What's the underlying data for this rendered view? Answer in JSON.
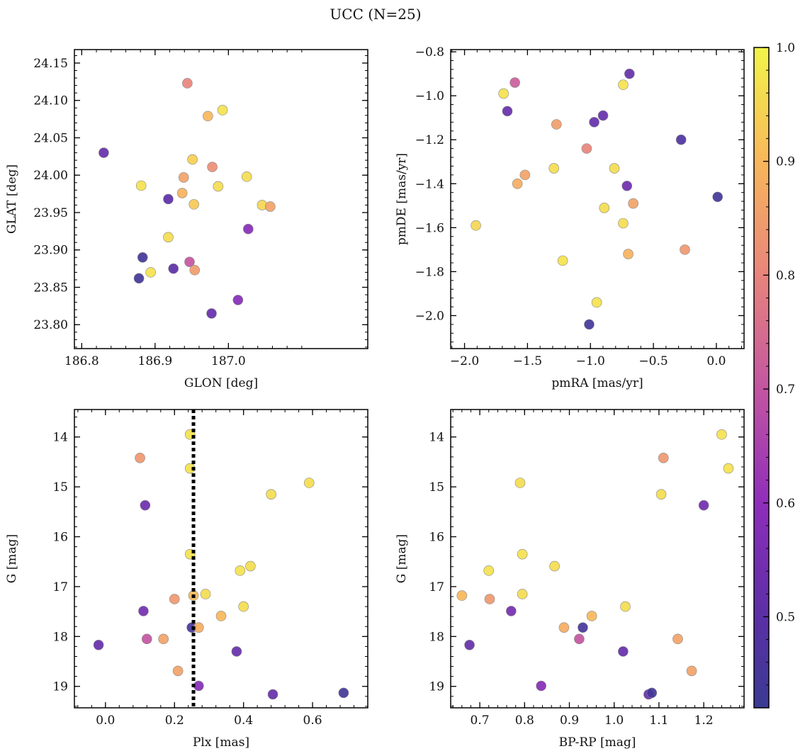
{
  "figure": {
    "title": "UCC (N=25)"
  },
  "colorbar": {
    "colormap": "plasma",
    "vmin": 0.42,
    "vmax": 1.0,
    "ticks": [
      0.5,
      0.6,
      0.7,
      0.8,
      0.9,
      1.0
    ],
    "tick_labels": [
      "0.5",
      "0.6",
      "0.7",
      "0.8",
      "0.9",
      "1.0"
    ]
  },
  "chart_data": [
    {
      "type": "scatter",
      "title": "",
      "xlabel": "GLON [deg]",
      "ylabel": "GLAT [deg]",
      "xlim": [
        186.79,
        187.19
      ],
      "ylim": [
        23.768,
        24.168
      ],
      "xticks": [
        186.8,
        186.9,
        187.0
      ],
      "xtick_labels": [
        "186.8",
        "186.9",
        "187.0"
      ],
      "yticks": [
        23.8,
        23.85,
        23.9,
        23.95,
        24.0,
        24.05,
        24.1,
        24.15
      ],
      "ytick_labels": [
        "23.80",
        "23.85",
        "23.90",
        "23.95",
        "24.00",
        "24.05",
        "24.10",
        "24.15"
      ],
      "y_inverted": false,
      "points": [
        {
          "x": 186.83,
          "y": 24.03,
          "c": 0.52
        },
        {
          "x": 186.944,
          "y": 24.123,
          "c": 0.8
        },
        {
          "x": 186.992,
          "y": 24.087,
          "c": 0.97
        },
        {
          "x": 186.972,
          "y": 24.079,
          "c": 0.9
        },
        {
          "x": 186.881,
          "y": 23.986,
          "c": 0.97
        },
        {
          "x": 186.951,
          "y": 24.021,
          "c": 0.94
        },
        {
          "x": 186.978,
          "y": 24.011,
          "c": 0.82
        },
        {
          "x": 186.939,
          "y": 23.997,
          "c": 0.86
        },
        {
          "x": 187.025,
          "y": 23.998,
          "c": 0.96
        },
        {
          "x": 186.986,
          "y": 23.985,
          "c": 0.96
        },
        {
          "x": 186.918,
          "y": 23.968,
          "c": 0.5
        },
        {
          "x": 186.937,
          "y": 23.976,
          "c": 0.89
        },
        {
          "x": 186.953,
          "y": 23.961,
          "c": 0.93
        },
        {
          "x": 187.046,
          "y": 23.96,
          "c": 0.95
        },
        {
          "x": 187.057,
          "y": 23.958,
          "c": 0.86
        },
        {
          "x": 187.027,
          "y": 23.928,
          "c": 0.58
        },
        {
          "x": 186.918,
          "y": 23.917,
          "c": 0.96
        },
        {
          "x": 186.883,
          "y": 23.89,
          "c": 0.44
        },
        {
          "x": 186.947,
          "y": 23.884,
          "c": 0.7
        },
        {
          "x": 186.925,
          "y": 23.875,
          "c": 0.5
        },
        {
          "x": 186.954,
          "y": 23.873,
          "c": 0.85
        },
        {
          "x": 186.894,
          "y": 23.87,
          "c": 0.97
        },
        {
          "x": 186.878,
          "y": 23.862,
          "c": 0.44
        },
        {
          "x": 187.013,
          "y": 23.833,
          "c": 0.58
        },
        {
          "x": 186.977,
          "y": 23.815,
          "c": 0.52
        }
      ]
    },
    {
      "type": "scatter",
      "title": "",
      "xlabel": "pmRA [mas/yr]",
      "ylabel": "pmDE [mas/yr]",
      "xlim": [
        -2.11,
        0.22
      ],
      "ylim": [
        -2.15,
        -0.79
      ],
      "xticks": [
        -2.0,
        -1.5,
        -1.0,
        -0.5,
        0.0
      ],
      "xtick_labels": [
        "−2.0",
        "−1.5",
        "−1.0",
        "−0.5",
        "0.0"
      ],
      "yticks": [
        -2.0,
        -1.8,
        -1.6,
        -1.4,
        -1.2,
        -1.0,
        -0.8
      ],
      "ytick_labels": [
        "−2.0",
        "−1.8",
        "−1.6",
        "−1.4",
        "−1.2",
        "−1.0",
        "−0.8"
      ],
      "y_inverted": false,
      "points": [
        {
          "x": -0.69,
          "y": -0.9,
          "c": 0.52
        },
        {
          "x": -1.6,
          "y": -0.94,
          "c": 0.72
        },
        {
          "x": -0.74,
          "y": -0.95,
          "c": 0.97
        },
        {
          "x": -1.69,
          "y": -0.99,
          "c": 0.97
        },
        {
          "x": -1.66,
          "y": -1.07,
          "c": 0.52
        },
        {
          "x": -0.9,
          "y": -1.09,
          "c": 0.52
        },
        {
          "x": -0.97,
          "y": -1.12,
          "c": 0.52
        },
        {
          "x": -1.27,
          "y": -1.13,
          "c": 0.85
        },
        {
          "x": -0.28,
          "y": -1.2,
          "c": 0.47
        },
        {
          "x": -1.03,
          "y": -1.24,
          "c": 0.8
        },
        {
          "x": -1.29,
          "y": -1.33,
          "c": 0.96
        },
        {
          "x": -0.81,
          "y": -1.33,
          "c": 0.96
        },
        {
          "x": -1.52,
          "y": -1.36,
          "c": 0.86
        },
        {
          "x": -1.58,
          "y": -1.4,
          "c": 0.88
        },
        {
          "x": -0.71,
          "y": -1.41,
          "c": 0.54
        },
        {
          "x": 0.01,
          "y": -1.46,
          "c": 0.44
        },
        {
          "x": -0.66,
          "y": -1.49,
          "c": 0.86
        },
        {
          "x": -0.89,
          "y": -1.51,
          "c": 0.96
        },
        {
          "x": -1.91,
          "y": -1.59,
          "c": 0.95
        },
        {
          "x": -0.74,
          "y": -1.58,
          "c": 0.96
        },
        {
          "x": -0.7,
          "y": -1.72,
          "c": 0.89
        },
        {
          "x": -0.25,
          "y": -1.7,
          "c": 0.84
        },
        {
          "x": -1.22,
          "y": -1.75,
          "c": 0.97
        },
        {
          "x": -0.95,
          "y": -1.94,
          "c": 0.97
        },
        {
          "x": -1.01,
          "y": -2.04,
          "c": 0.44
        }
      ]
    },
    {
      "type": "scatter",
      "title": "",
      "xlabel": "Plx [mas]",
      "ylabel": "G [mag]",
      "xlim": [
        -0.09,
        0.76
      ],
      "ylim": [
        13.45,
        19.43
      ],
      "xticks": [
        0.0,
        0.2,
        0.4,
        0.6
      ],
      "xtick_labels": [
        "0.0",
        "0.2",
        "0.4",
        "0.6"
      ],
      "yticks": [
        14,
        15,
        16,
        17,
        18,
        19
      ],
      "ytick_labels": [
        "14",
        "15",
        "16",
        "17",
        "18",
        "19"
      ],
      "y_inverted": true,
      "vline": {
        "x": 0.255,
        "style": "dotted",
        "color": "#000000"
      },
      "points": [
        {
          "x": 0.245,
          "y": 13.95,
          "c": 0.97
        },
        {
          "x": 0.1,
          "y": 14.42,
          "c": 0.84
        },
        {
          "x": 0.245,
          "y": 14.63,
          "c": 0.97
        },
        {
          "x": 0.59,
          "y": 14.92,
          "c": 0.96
        },
        {
          "x": 0.48,
          "y": 15.15,
          "c": 0.96
        },
        {
          "x": 0.115,
          "y": 15.37,
          "c": 0.54
        },
        {
          "x": 0.245,
          "y": 16.35,
          "c": 0.97
        },
        {
          "x": 0.42,
          "y": 16.59,
          "c": 0.96
        },
        {
          "x": 0.39,
          "y": 16.68,
          "c": 0.97
        },
        {
          "x": 0.29,
          "y": 17.15,
          "c": 0.96
        },
        {
          "x": 0.255,
          "y": 17.18,
          "c": 0.9
        },
        {
          "x": 0.2,
          "y": 17.25,
          "c": 0.84
        },
        {
          "x": 0.4,
          "y": 17.4,
          "c": 0.96
        },
        {
          "x": 0.11,
          "y": 17.49,
          "c": 0.55
        },
        {
          "x": 0.335,
          "y": 17.59,
          "c": 0.9
        },
        {
          "x": 0.25,
          "y": 17.82,
          "c": 0.45
        },
        {
          "x": 0.27,
          "y": 17.82,
          "c": 0.88
        },
        {
          "x": 0.12,
          "y": 18.05,
          "c": 0.7
        },
        {
          "x": 0.168,
          "y": 18.05,
          "c": 0.86
        },
        {
          "x": -0.02,
          "y": 18.17,
          "c": 0.52
        },
        {
          "x": 0.38,
          "y": 18.3,
          "c": 0.52
        },
        {
          "x": 0.21,
          "y": 18.69,
          "c": 0.86
        },
        {
          "x": 0.27,
          "y": 18.99,
          "c": 0.58
        },
        {
          "x": 0.485,
          "y": 19.16,
          "c": 0.52
        },
        {
          "x": 0.69,
          "y": 19.13,
          "c": 0.44
        }
      ]
    },
    {
      "type": "scatter",
      "title": "",
      "xlabel": "BP-RP [mag]",
      "ylabel": "G [mag]",
      "xlim": [
        0.635,
        1.29
      ],
      "ylim": [
        13.45,
        19.43
      ],
      "xticks": [
        0.7,
        0.8,
        0.9,
        1.0,
        1.1,
        1.2
      ],
      "xtick_labels": [
        "0.7",
        "0.8",
        "0.9",
        "1.0",
        "1.1",
        "1.2"
      ],
      "yticks": [
        14,
        15,
        16,
        17,
        18,
        19
      ],
      "ytick_labels": [
        "14",
        "15",
        "16",
        "17",
        "18",
        "19"
      ],
      "y_inverted": true,
      "points": [
        {
          "x": 1.24,
          "y": 13.95,
          "c": 0.97
        },
        {
          "x": 1.11,
          "y": 14.42,
          "c": 0.84
        },
        {
          "x": 1.255,
          "y": 14.63,
          "c": 0.97
        },
        {
          "x": 0.79,
          "y": 14.92,
          "c": 0.96
        },
        {
          "x": 1.105,
          "y": 15.15,
          "c": 0.96
        },
        {
          "x": 1.2,
          "y": 15.37,
          "c": 0.54
        },
        {
          "x": 0.795,
          "y": 16.35,
          "c": 0.97
        },
        {
          "x": 0.867,
          "y": 16.59,
          "c": 0.96
        },
        {
          "x": 0.72,
          "y": 16.68,
          "c": 0.97
        },
        {
          "x": 0.795,
          "y": 17.15,
          "c": 0.96
        },
        {
          "x": 0.66,
          "y": 17.18,
          "c": 0.9
        },
        {
          "x": 0.722,
          "y": 17.25,
          "c": 0.84
        },
        {
          "x": 1.025,
          "y": 17.4,
          "c": 0.96
        },
        {
          "x": 0.77,
          "y": 17.49,
          "c": 0.55
        },
        {
          "x": 0.95,
          "y": 17.59,
          "c": 0.9
        },
        {
          "x": 0.93,
          "y": 17.82,
          "c": 0.45
        },
        {
          "x": 0.888,
          "y": 17.82,
          "c": 0.88
        },
        {
          "x": 0.922,
          "y": 18.05,
          "c": 0.7
        },
        {
          "x": 1.142,
          "y": 18.05,
          "c": 0.86
        },
        {
          "x": 0.677,
          "y": 18.17,
          "c": 0.52
        },
        {
          "x": 1.02,
          "y": 18.3,
          "c": 0.52
        },
        {
          "x": 1.173,
          "y": 18.69,
          "c": 0.86
        },
        {
          "x": 0.837,
          "y": 18.99,
          "c": 0.58
        },
        {
          "x": 1.077,
          "y": 19.16,
          "c": 0.52
        },
        {
          "x": 1.084,
          "y": 19.13,
          "c": 0.44
        }
      ]
    }
  ]
}
